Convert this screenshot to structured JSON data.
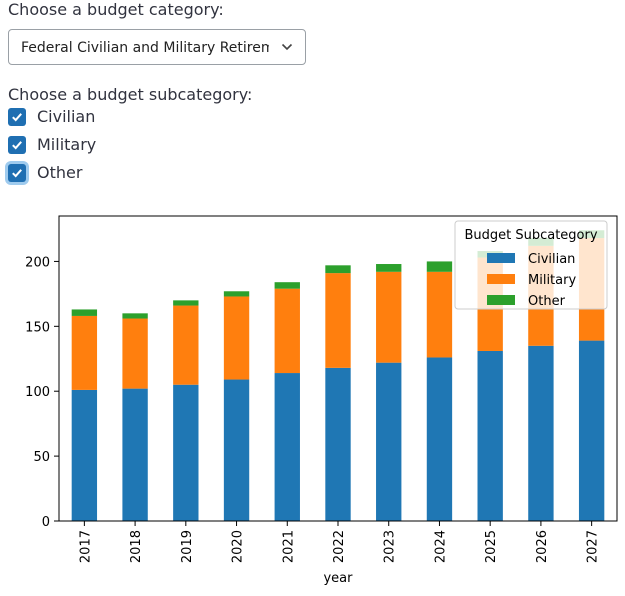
{
  "category": {
    "label": "Choose a budget category:",
    "selected": "Federal Civilian and Military Retirem"
  },
  "subcategory": {
    "label": "Choose a budget subcategory:",
    "options": [
      {
        "label": "Civilian",
        "checked": true
      },
      {
        "label": "Military",
        "checked": true
      },
      {
        "label": "Other",
        "checked": true
      }
    ]
  },
  "colors": {
    "accent": "#1f6fb2",
    "civilian": "#1f77b4",
    "military": "#ff7f0e",
    "other": "#2ca02c"
  },
  "chart_data": {
    "type": "bar",
    "stacked": true,
    "categories": [
      "2017",
      "2018",
      "2019",
      "2020",
      "2021",
      "2022",
      "2023",
      "2024",
      "2025",
      "2026",
      "2027"
    ],
    "series": [
      {
        "name": "Civilian",
        "color": "#1f77b4",
        "values": [
          101,
          102,
          105,
          109,
          114,
          118,
          122,
          126,
          131,
          135,
          139
        ]
      },
      {
        "name": "Military",
        "color": "#ff7f0e",
        "values": [
          57,
          54,
          61,
          64,
          65,
          73,
          70,
          66,
          72,
          77,
          79
        ]
      },
      {
        "name": "Other",
        "color": "#2ca02c",
        "values": [
          5,
          4,
          4,
          4,
          5,
          6,
          6,
          8,
          5,
          6,
          6
        ]
      }
    ],
    "xlabel": "year",
    "ylabel": "",
    "ylim": [
      0,
      235
    ],
    "yticks": [
      0,
      50,
      100,
      150,
      200
    ],
    "legend": {
      "title": "Budget Subcategory",
      "placement": "upper right"
    },
    "grid": false
  }
}
